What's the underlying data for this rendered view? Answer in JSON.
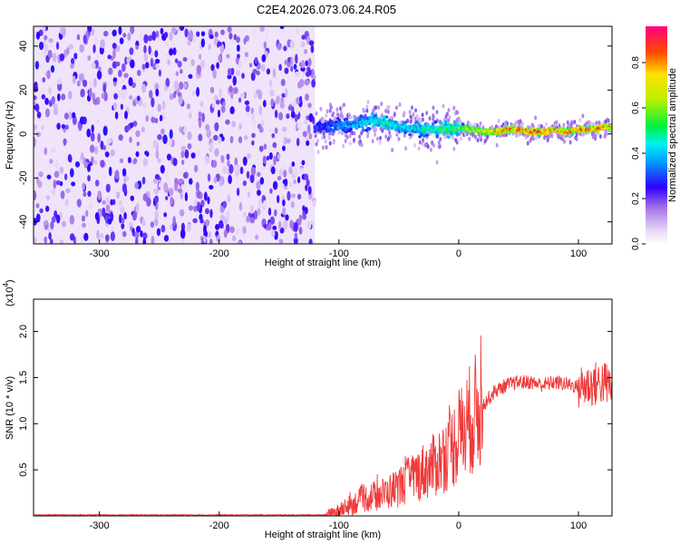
{
  "title": "C2E4.2026.073.06.24.R05",
  "chart_data": [
    {
      "type": "heatmap",
      "xlabel": "Height of straight line (km)",
      "ylabel": "Frequency (Hz)",
      "xlim": [
        -355,
        128
      ],
      "ylim": [
        -50,
        49
      ],
      "xticks": [
        -300,
        -200,
        -100,
        0,
        100
      ],
      "yticks": [
        -40,
        -20,
        0,
        20,
        40
      ],
      "grid": false,
      "noise_region_x": [
        -355,
        -120
      ],
      "signal_trace": {
        "x": [
          -120,
          -110,
          -100,
          -90,
          -80,
          -70,
          -60,
          -50,
          -40,
          -30,
          -20,
          -10,
          0,
          10,
          20,
          30,
          40,
          50,
          60,
          70,
          80,
          90,
          100,
          110,
          120,
          128
        ],
        "freq_center": [
          3,
          3,
          4,
          4,
          5,
          6,
          5,
          3,
          3,
          2,
          2,
          2,
          3,
          2,
          1,
          1,
          2,
          2,
          1,
          1,
          2,
          1,
          2,
          2,
          3,
          3
        ],
        "amplitude": [
          0.3,
          0.35,
          0.4,
          0.4,
          0.45,
          0.5,
          0.5,
          0.45,
          0.45,
          0.5,
          0.5,
          0.55,
          0.6,
          0.7,
          0.75,
          0.8,
          0.85,
          0.88,
          0.9,
          0.9,
          0.85,
          0.85,
          0.88,
          0.85,
          0.85,
          0.8
        ]
      },
      "colorbar": {
        "label": "Normalized spectral amplitude",
        "range": [
          0,
          0.96
        ],
        "ticks": [
          0.0,
          0.2,
          0.4,
          0.6,
          0.8
        ]
      }
    },
    {
      "type": "line",
      "xlabel": "Height of straight line (km)",
      "ylabel": "SNR (10 * v/v)",
      "y_multiplier": "(x10",
      "y_exponent": "4",
      "y_multiplier_close": ")",
      "xlim": [
        -355,
        128
      ],
      "ylim": [
        0,
        2.35
      ],
      "xticks": [
        -300,
        -200,
        -100,
        0,
        100
      ],
      "yticks": [
        0.5,
        1.0,
        1.5,
        2.0
      ],
      "ytick_labels": [
        "0.5",
        "1.0",
        "1.5",
        "2.0"
      ],
      "grid": false,
      "color": "#f03a3a",
      "series": [
        {
          "x": [
            -355,
            -300,
            -200,
            -110,
            -100,
            -90,
            -80,
            -70,
            -60,
            -50,
            -40,
            -30,
            -20,
            -10,
            0,
            10,
            20,
            30,
            40,
            50,
            60,
            70,
            80,
            90,
            100,
            110,
            120,
            128
          ],
          "values": [
            0.01,
            0.01,
            0.01,
            0.01,
            0.05,
            0.12,
            0.18,
            0.22,
            0.25,
            0.32,
            0.4,
            0.48,
            0.55,
            0.68,
            0.85,
            1.05,
            1.2,
            1.35,
            1.42,
            1.45,
            1.45,
            1.42,
            1.45,
            1.43,
            1.4,
            1.42,
            1.45,
            1.4
          ]
        }
      ]
    }
  ]
}
